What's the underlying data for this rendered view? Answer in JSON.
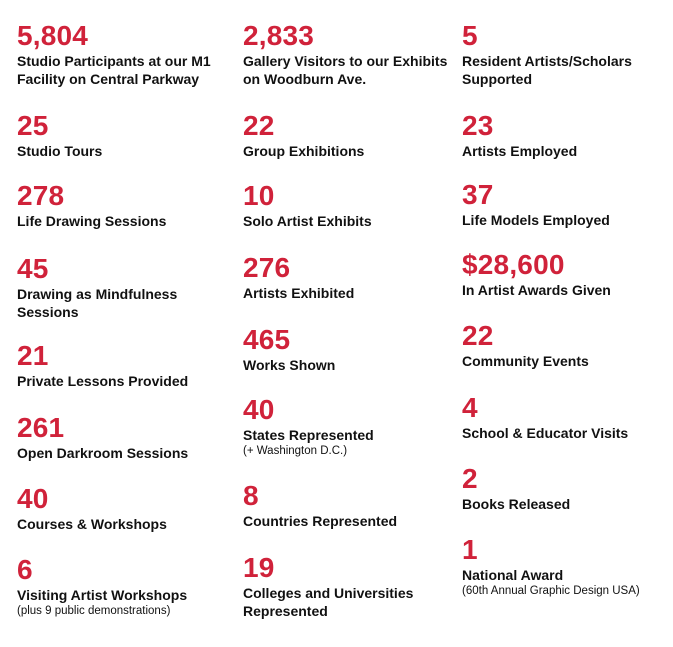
{
  "accent_color": "#d0223a",
  "columns": [
    [
      {
        "value": "5,804",
        "label": "Studio Participants at our M1 Facility on Central Parkway"
      },
      {
        "value": "25",
        "label": "Studio Tours"
      },
      {
        "value": "278",
        "label": "Life Drawing Sessions"
      },
      {
        "value": "45",
        "label": "Drawing as Mindfulness Sessions"
      },
      {
        "value": "21",
        "label": "Private Lessons Provided"
      },
      {
        "value": "261",
        "label": "Open Darkroom Sessions"
      },
      {
        "value": "40",
        "label": "Courses & Workshops"
      },
      {
        "value": "6",
        "label": "Visiting Artist Workshops",
        "note": "(plus 9 public demonstrations)"
      }
    ],
    [
      {
        "value": "2,833",
        "label": "Gallery Visitors to our Exhibits on Woodburn Ave."
      },
      {
        "value": "22",
        "label": "Group Exhibitions"
      },
      {
        "value": "10",
        "label": "Solo Artist Exhibits"
      },
      {
        "value": "276",
        "label": "Artists Exhibited"
      },
      {
        "value": "465",
        "label": "Works Shown"
      },
      {
        "value": "40",
        "label": "States Represented",
        "note": "(+ Washington D.C.)"
      },
      {
        "value": "8",
        "label": "Countries Represented"
      },
      {
        "value": "19",
        "label": "Colleges and Universities Represented"
      }
    ],
    [
      {
        "value": "5",
        "label": "Resident Artists/Scholars Supported"
      },
      {
        "value": "23",
        "label": "Artists Employed"
      },
      {
        "value": "37",
        "label": "Life Models Employed"
      },
      {
        "value": "$28,600",
        "label": "In Artist Awards Given"
      },
      {
        "value": "22",
        "label": "Community Events"
      },
      {
        "value": "4",
        "label": "School & Educator Visits"
      },
      {
        "value": "2",
        "label": "Books Released"
      },
      {
        "value": "1",
        "label": "National Award",
        "note": "(60th Annual Graphic Design USA)"
      }
    ]
  ]
}
